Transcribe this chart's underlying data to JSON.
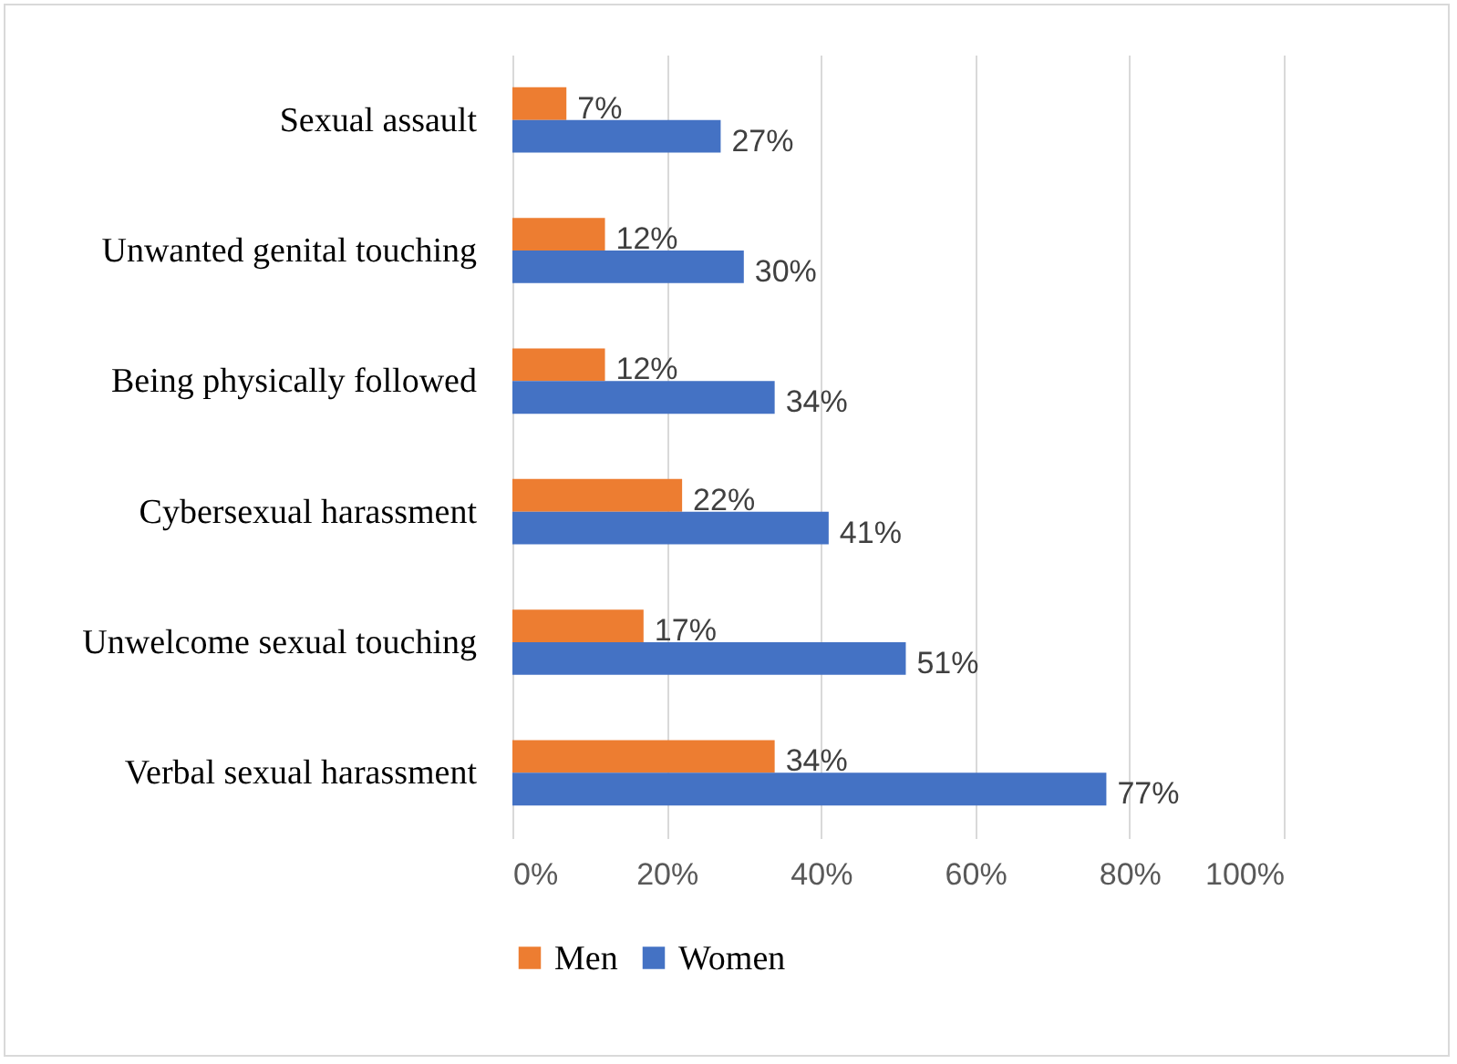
{
  "chart_data": {
    "type": "bar",
    "orientation": "horizontal",
    "categories": [
      "Sexual assault",
      "Unwanted genital touching",
      "Being physically followed",
      "Cybersexual harassment",
      "Unwelcome sexual touching",
      "Verbal sexual harassment"
    ],
    "series": [
      {
        "name": "Men",
        "color": "#ed7d31",
        "values": [
          7,
          12,
          12,
          22,
          17,
          34
        ],
        "value_labels": [
          "7%",
          "12%",
          "12%",
          "22%",
          "17%",
          "34%"
        ]
      },
      {
        "name": "Women",
        "color": "#4472c4",
        "values": [
          27,
          30,
          34,
          41,
          51,
          77
        ],
        "value_labels": [
          "27%",
          "30%",
          "34%",
          "41%",
          "51%",
          "77%"
        ]
      }
    ],
    "xlim": [
      0,
      100
    ],
    "xticks": [
      {
        "value": 0,
        "label": "0%"
      },
      {
        "value": 20,
        "label": "20%"
      },
      {
        "value": 40,
        "label": "40%"
      },
      {
        "value": 60,
        "label": "60%"
      },
      {
        "value": 80,
        "label": "80%"
      },
      {
        "value": 100,
        "label": "100%"
      }
    ],
    "grid": "x",
    "legend": "bottom"
  }
}
